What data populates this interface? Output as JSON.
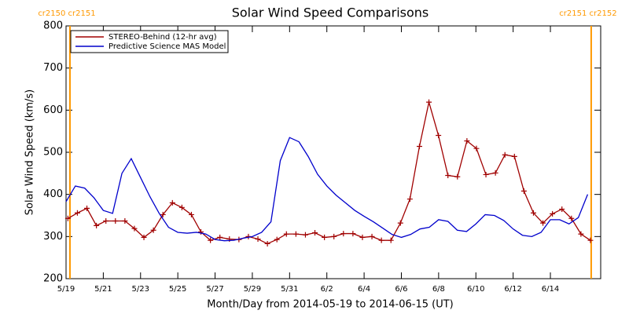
{
  "chart_data": {
    "type": "line",
    "title": "Solar Wind Speed Comparisons",
    "x_label": "Month/Day from 2014-05-19 to 2014-06-15 (UT)",
    "y_label": "Solar Wind Speed (km/s)",
    "xlim": [
      0,
      28.7
    ],
    "xticks": [
      {
        "value": 0,
        "label": "5/19"
      },
      {
        "value": 2,
        "label": "5/21"
      },
      {
        "value": 4,
        "label": "5/23"
      },
      {
        "value": 6,
        "label": "5/25"
      },
      {
        "value": 8,
        "label": "5/27"
      },
      {
        "value": 10,
        "label": "5/29"
      },
      {
        "value": 12,
        "label": "5/31"
      },
      {
        "value": 14,
        "label": "6/2"
      },
      {
        "value": 16,
        "label": "6/4"
      },
      {
        "value": 18,
        "label": "6/6"
      },
      {
        "value": 20,
        "label": "6/8"
      },
      {
        "value": 22,
        "label": "6/10"
      },
      {
        "value": 24,
        "label": "6/12"
      },
      {
        "value": 26,
        "label": "6/14"
      }
    ],
    "ylim": [
      200,
      800
    ],
    "yticks": [
      200,
      300,
      400,
      500,
      600,
      700,
      800
    ],
    "legend": "top-left",
    "rotation_boundaries": {
      "color": "#ff9900",
      "items": [
        {
          "x": 0.21,
          "label": "cr2150 cr2151"
        },
        {
          "x": 28.19,
          "label": "cr2151 cr2152"
        }
      ]
    },
    "series": [
      {
        "name": "STEREO-Behind (12-hr avg)",
        "color": "#a00000",
        "markers": true,
        "x": [
          0.1,
          0.61,
          1.12,
          1.63,
          2.14,
          2.65,
          3.16,
          3.67,
          4.18,
          4.69,
          5.2,
          5.71,
          6.22,
          6.73,
          7.24,
          7.75,
          8.26,
          8.77,
          9.28,
          9.79,
          10.3,
          10.81,
          11.32,
          11.83,
          12.34,
          12.85,
          13.36,
          13.87,
          14.38,
          14.89,
          15.4,
          15.91,
          16.42,
          16.93,
          17.44,
          17.95,
          18.46,
          18.97,
          19.48,
          19.99,
          20.5,
          21.01,
          21.52,
          22.03,
          22.54,
          23.05,
          23.56,
          24.07,
          24.58,
          25.09,
          25.6,
          26.11,
          26.62,
          27.13,
          27.64,
          28.15
        ],
        "values": [
          343,
          356,
          367,
          326,
          337,
          337,
          337,
          319,
          298,
          315,
          352,
          380,
          369,
          352,
          311,
          291,
          298,
          294,
          293,
          300,
          294,
          283,
          293,
          306,
          306,
          304,
          309,
          298,
          300,
          307,
          307,
          298,
          300,
          291,
          291,
          332,
          389,
          514,
          619,
          540,
          445,
          442,
          527,
          509,
          447,
          451,
          494,
          490,
          408,
          356,
          332,
          354,
          365,
          343,
          306,
          291
        ]
      },
      {
        "name": "Predictive Science MAS Model",
        "color": "#0000cc",
        "markers": false,
        "x": [
          0,
          0.5,
          1,
          1.5,
          2,
          2.5,
          3,
          3.5,
          4,
          4.5,
          5,
          5.5,
          6,
          6.5,
          7,
          7.5,
          8,
          8.5,
          9,
          9.5,
          10,
          10.5,
          11,
          11.5,
          12,
          12.5,
          13,
          13.5,
          14,
          14.5,
          15,
          15.5,
          16,
          16.5,
          17,
          17.5,
          18,
          18.5,
          19,
          19.5,
          20,
          20.5,
          21,
          21.5,
          22,
          22.5,
          23,
          23.5,
          24,
          24.5,
          25,
          25.5,
          26,
          26.5,
          27,
          27.5,
          28
        ],
        "values": [
          383,
          420,
          415,
          392,
          362,
          355,
          450,
          485,
          440,
          395,
          355,
          322,
          310,
          308,
          310,
          306,
          293,
          290,
          291,
          296,
          300,
          310,
          335,
          480,
          535,
          525,
          490,
          448,
          420,
          398,
          380,
          362,
          348,
          335,
          320,
          305,
          298,
          305,
          318,
          322,
          340,
          336,
          315,
          312,
          330,
          352,
          350,
          338,
          318,
          303,
          300,
          310,
          340,
          340,
          330,
          345,
          400
        ]
      }
    ]
  }
}
